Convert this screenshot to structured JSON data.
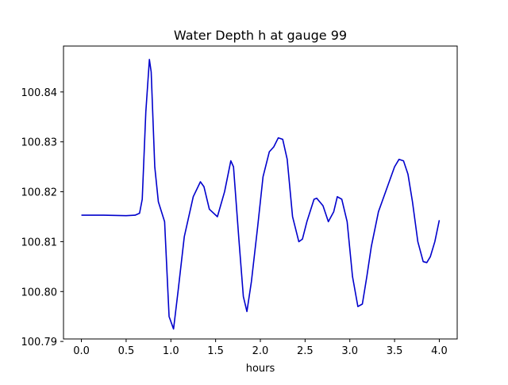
{
  "chart_data": {
    "type": "line",
    "title": "Water Depth h at gauge 99",
    "xlabel": "hours",
    "ylabel": "",
    "xlim": [
      -0.2,
      4.2
    ],
    "ylim": [
      100.7905,
      100.8492
    ],
    "xticks": [
      0.0,
      0.5,
      1.0,
      1.5,
      2.0,
      2.5,
      3.0,
      3.5,
      4.0
    ],
    "xtick_labels": [
      "0.0",
      "0.5",
      "1.0",
      "1.5",
      "2.0",
      "2.5",
      "3.0",
      "3.5",
      "4.0"
    ],
    "yticks": [
      100.79,
      100.8,
      100.81,
      100.82,
      100.83,
      100.84
    ],
    "ytick_labels": [
      "100.79",
      "100.80",
      "100.81",
      "100.82",
      "100.83",
      "100.84"
    ],
    "grid": false,
    "series": [
      {
        "color": "#0000cc",
        "x": [
          0.0,
          0.25,
          0.5,
          0.6,
          0.65,
          0.68,
          0.72,
          0.76,
          0.78,
          0.82,
          0.86,
          0.93,
          0.98,
          1.03,
          1.08,
          1.15,
          1.25,
          1.33,
          1.37,
          1.43,
          1.52,
          1.6,
          1.67,
          1.7,
          1.76,
          1.81,
          1.85,
          1.9,
          1.97,
          2.03,
          2.1,
          2.15,
          2.2,
          2.25,
          2.3,
          2.36,
          2.43,
          2.47,
          2.52,
          2.6,
          2.63,
          2.7,
          2.76,
          2.82,
          2.86,
          2.91,
          2.97,
          3.03,
          3.09,
          3.14,
          3.19,
          3.24,
          3.32,
          3.42,
          3.5,
          3.55,
          3.6,
          3.65,
          3.7,
          3.76,
          3.82,
          3.86,
          3.9,
          3.95,
          4.0
        ],
        "y": [
          100.8153,
          100.8153,
          100.8152,
          100.8153,
          100.8157,
          100.8185,
          100.836,
          100.8465,
          100.844,
          100.825,
          100.818,
          100.814,
          100.795,
          100.7925,
          100.8,
          100.811,
          100.819,
          100.822,
          100.821,
          100.8165,
          100.815,
          100.82,
          100.8262,
          100.825,
          100.8105,
          100.799,
          100.796,
          100.802,
          100.813,
          100.823,
          100.828,
          100.829,
          100.8308,
          100.8305,
          100.8265,
          100.815,
          100.81,
          100.8105,
          100.814,
          100.8185,
          100.8187,
          100.8172,
          100.814,
          100.816,
          100.819,
          100.8185,
          100.814,
          100.803,
          100.797,
          100.7975,
          100.803,
          100.809,
          100.816,
          100.821,
          100.825,
          100.8265,
          100.8262,
          100.8235,
          100.818,
          100.81,
          100.806,
          100.8058,
          100.807,
          100.81,
          100.8143
        ]
      }
    ]
  }
}
